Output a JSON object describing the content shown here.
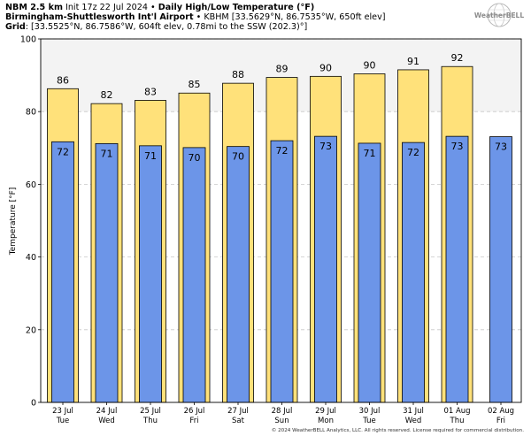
{
  "header": {
    "line1_bold": "NBM 2.5 km",
    "line1_mid": " Init 17z 22 Jul 2024 • ",
    "line1_bold2": "Daily High/Low Temperature (°F)",
    "line2_bold": "Birmingham-Shuttlesworth Int'l Airport",
    "line2_rest": " • KBHM [33.5629°N, 86.7535°W, 650ft elev]",
    "line3_bold": "Grid",
    "line3_rest": ": [33.5525°N, 86.7586°W, 604ft elev, 0.78mi to the SSW (202.3)°]"
  },
  "logo": {
    "text": "WeatherBELL",
    "icon": "weatherbell-globe-icon"
  },
  "copyright": "© 2024 WeatherBELL Analytics, LLC. All rights reserved. License required for commercial distribution.",
  "colors": {
    "high": "#FFE17A",
    "low": "#6C95E8",
    "shade": "#F3F3F3",
    "grid": "#C8C8C8"
  },
  "chart_data": {
    "type": "bar",
    "ylabel": "Temperature [°F]",
    "ylim": [
      0,
      100
    ],
    "yticks": [
      0,
      20,
      40,
      60,
      80,
      100
    ],
    "grid": true,
    "shaded_band": [
      80,
      100
    ],
    "categories": [
      [
        "23 Jul",
        "Tue"
      ],
      [
        "24 Jul",
        "Wed"
      ],
      [
        "25 Jul",
        "Thu"
      ],
      [
        "26 Jul",
        "Fri"
      ],
      [
        "27 Jul",
        "Sat"
      ],
      [
        "28 Jul",
        "Sun"
      ],
      [
        "29 Jul",
        "Mon"
      ],
      [
        "30 Jul",
        "Tue"
      ],
      [
        "31 Jul",
        "Wed"
      ],
      [
        "01 Aug",
        "Thu"
      ],
      [
        "02 Aug",
        "Fri"
      ]
    ],
    "series": [
      {
        "key": "high",
        "values": [
          86,
          82,
          83,
          85,
          88,
          89,
          90,
          90,
          91,
          92,
          null
        ],
        "plotted": [
          86.3,
          82.2,
          83.1,
          85.1,
          87.8,
          89.4,
          89.7,
          90.4,
          91.5,
          92.4,
          null
        ]
      },
      {
        "key": "low",
        "values": [
          72,
          71,
          71,
          70,
          70,
          72,
          73,
          71,
          72,
          73,
          73
        ],
        "plotted": [
          71.7,
          71.2,
          70.6,
          70.1,
          70.4,
          72.0,
          73.2,
          71.3,
          71.5,
          73.2,
          73.1
        ]
      }
    ]
  }
}
